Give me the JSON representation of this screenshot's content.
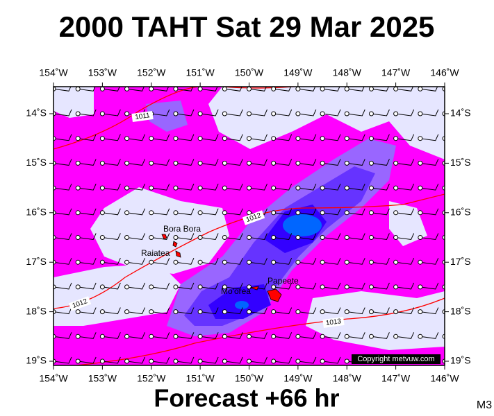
{
  "header": {
    "title": "2000 TAHT Sat 29 Mar 2025"
  },
  "map": {
    "lon_ticks": [
      {
        "value": -154,
        "label": "154˚W"
      },
      {
        "value": -153,
        "label": "153˚W"
      },
      {
        "value": -152,
        "label": "152˚W"
      },
      {
        "value": -151,
        "label": "151˚W"
      },
      {
        "value": -150,
        "label": "150˚W"
      },
      {
        "value": -149,
        "label": "149˚W"
      },
      {
        "value": -148,
        "label": "148˚W"
      },
      {
        "value": -147,
        "label": "147˚W"
      },
      {
        "value": -146,
        "label": "146˚W"
      }
    ],
    "lat_ticks": [
      {
        "value": -14,
        "label": "14˚S"
      },
      {
        "value": -15,
        "label": "15˚S"
      },
      {
        "value": -16,
        "label": "16˚S"
      },
      {
        "value": -17,
        "label": "17˚S"
      },
      {
        "value": -18,
        "label": "18˚S"
      },
      {
        "value": -19,
        "label": "19˚S"
      }
    ],
    "places": [
      "Bora Bora",
      "Raiatea",
      "Mo'orea",
      "Papeete"
    ],
    "isobar_labels": [
      "1011",
      "1012",
      "1012",
      "1013"
    ],
    "copyright": "Copyright metvuw.com"
  },
  "footer": {
    "forecast": "Forecast +66 hr",
    "model": "M3"
  }
}
